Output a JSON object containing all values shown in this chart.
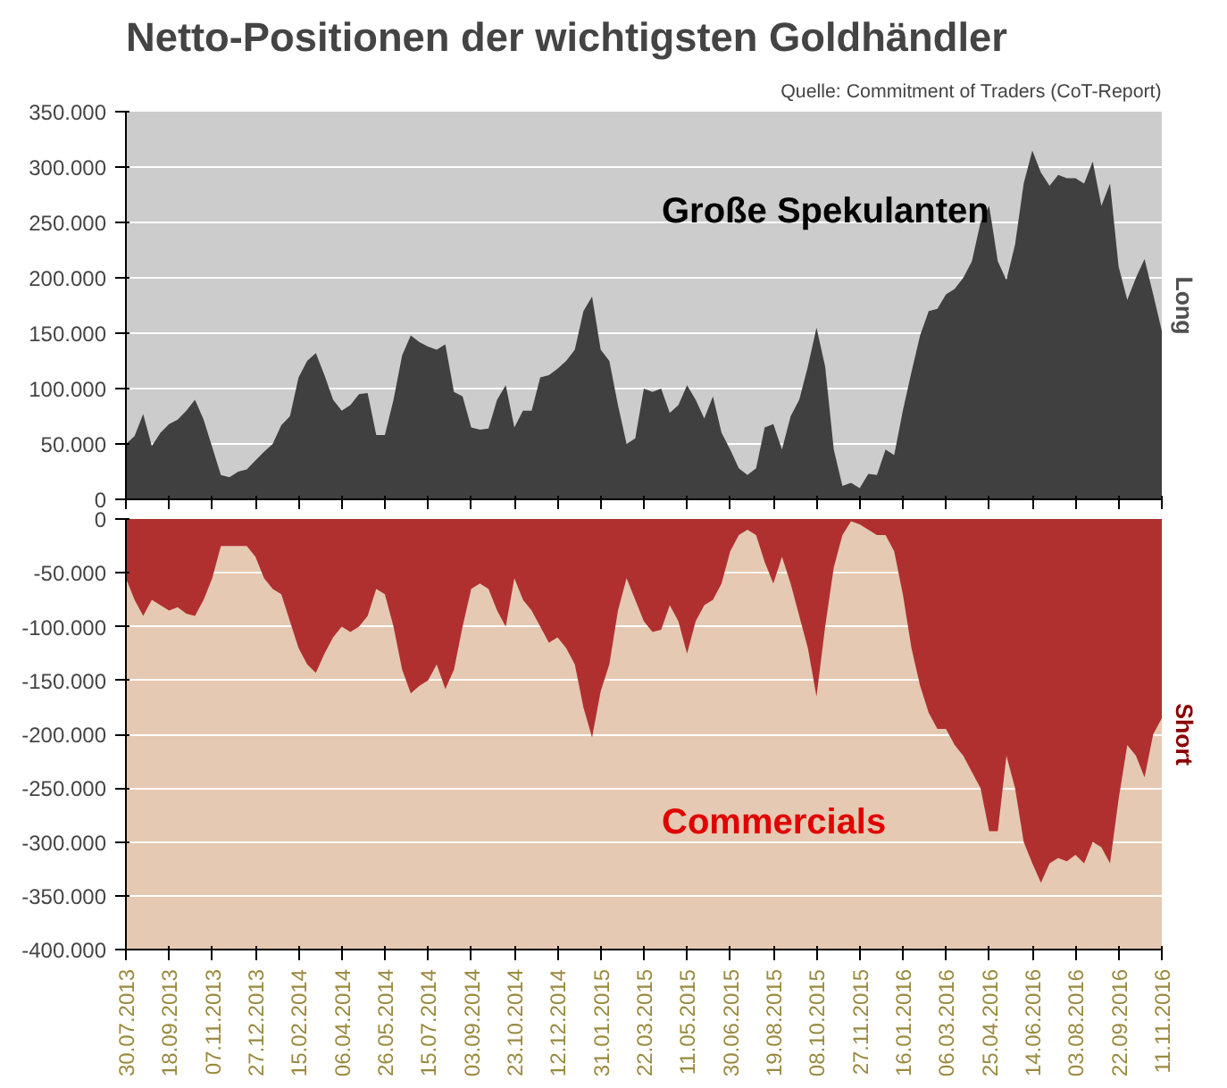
{
  "chart_data": [
    {
      "type": "area",
      "title": "Netto-Positionen der wichtigsten Goldhändler",
      "annotations": [
        "Quelle: Commitment of Traders (CoT-Report)",
        "Große Spekulanten"
      ],
      "ylabel": "Long",
      "grid": "y",
      "tick_labels": "y",
      "x": [
        "2013-07-30",
        "2013-08-09",
        "2013-08-19",
        "2013-08-29",
        "2013-09-08",
        "2013-09-18",
        "2013-09-28",
        "2013-10-08",
        "2013-10-18",
        "2013-10-28",
        "2013-11-07",
        "2013-11-17",
        "2013-11-27",
        "2013-12-07",
        "2013-12-17",
        "2013-12-27",
        "2014-01-06",
        "2014-01-16",
        "2014-01-26",
        "2014-02-05",
        "2014-02-15",
        "2014-02-25",
        "2014-03-07",
        "2014-03-17",
        "2014-03-27",
        "2014-04-06",
        "2014-04-16",
        "2014-04-26",
        "2014-05-06",
        "2014-05-16",
        "2014-05-26",
        "2014-06-05",
        "2014-06-15",
        "2014-06-25",
        "2014-07-05",
        "2014-07-15",
        "2014-07-25",
        "2014-08-04",
        "2014-08-14",
        "2014-08-24",
        "2014-09-03",
        "2014-09-13",
        "2014-09-23",
        "2014-10-03",
        "2014-10-13",
        "2014-10-23",
        "2014-11-02",
        "2014-11-12",
        "2014-11-22",
        "2014-12-02",
        "2014-12-12",
        "2014-12-22",
        "2015-01-01",
        "2015-01-11",
        "2015-01-21",
        "2015-01-31",
        "2015-02-10",
        "2015-02-20",
        "2015-03-02",
        "2015-03-12",
        "2015-03-22",
        "2015-04-01",
        "2015-04-11",
        "2015-04-21",
        "2015-05-01",
        "2015-05-11",
        "2015-05-21",
        "2015-05-31",
        "2015-06-10",
        "2015-06-20",
        "2015-06-30",
        "2015-07-10",
        "2015-07-20",
        "2015-07-30",
        "2015-08-09",
        "2015-08-19",
        "2015-08-29",
        "2015-09-08",
        "2015-09-18",
        "2015-09-28",
        "2015-10-08",
        "2015-10-18",
        "2015-10-28",
        "2015-11-07",
        "2015-11-17",
        "2015-11-27",
        "2015-12-07",
        "2015-12-17",
        "2015-12-27",
        "2016-01-06",
        "2016-01-16",
        "2016-01-26",
        "2016-02-05",
        "2016-02-15",
        "2016-02-25",
        "2016-03-06",
        "2016-03-16",
        "2016-03-26",
        "2016-04-05",
        "2016-04-15",
        "2016-04-25",
        "2016-05-05",
        "2016-05-15",
        "2016-05-25",
        "2016-06-04",
        "2016-06-14",
        "2016-06-24",
        "2016-07-04",
        "2016-07-14",
        "2016-07-24",
        "2016-08-03",
        "2016-08-13",
        "2016-08-23",
        "2016-09-02",
        "2016-09-12",
        "2016-09-22",
        "2016-10-02",
        "2016-10-12",
        "2016-10-22",
        "2016-11-01",
        "2016-11-11"
      ],
      "series": [
        {
          "color": "#404040",
          "values": [
            50000,
            57000,
            77000,
            48000,
            60000,
            68000,
            72000,
            80000,
            90000,
            72000,
            47000,
            22000,
            20000,
            25000,
            27000,
            35000,
            43000,
            50000,
            67000,
            75000,
            110000,
            125000,
            132000,
            112000,
            90000,
            80000,
            85000,
            95000,
            96000,
            58000,
            58000,
            90000,
            130000,
            148000,
            142000,
            138000,
            135000,
            140000,
            97000,
            93000,
            65000,
            63000,
            64000,
            90000,
            103000,
            65000,
            80000,
            80000,
            110000,
            112000,
            118000,
            125000,
            135000,
            170000,
            183000,
            135000,
            125000,
            85000,
            50000,
            55000,
            100000,
            97000,
            100000,
            78000,
            85000,
            103000,
            90000,
            73000,
            93000,
            60000,
            45000,
            28000,
            22000,
            28000,
            65000,
            68000,
            45000,
            75000,
            90000,
            120000,
            155000,
            120000,
            45000,
            12000,
            15000,
            10000,
            23000,
            22000,
            45000,
            40000,
            80000,
            115000,
            148000,
            170000,
            172000,
            185000,
            190000,
            200000,
            215000,
            250000,
            265000,
            215000,
            198000,
            230000,
            285000,
            315000,
            295000,
            283000,
            293000,
            290000,
            290000,
            285000,
            305000,
            265000,
            285000,
            210000,
            180000,
            200000,
            217000,
            185000,
            152000
          ]
        }
      ],
      "xlim": [
        "2013-07-30",
        "2016-11-11"
      ],
      "xticks": [
        {
          "value": "2013-07-30",
          "label": null
        },
        {
          "value": "2013-09-18",
          "label": null
        },
        {
          "value": "2013-11-07",
          "label": null
        },
        {
          "value": "2013-12-27",
          "label": null
        },
        {
          "value": "2014-02-15",
          "label": null
        },
        {
          "value": "2014-04-06",
          "label": null
        },
        {
          "value": "2014-05-26",
          "label": null
        },
        {
          "value": "2014-07-15",
          "label": null
        },
        {
          "value": "2014-09-03",
          "label": null
        },
        {
          "value": "2014-10-23",
          "label": null
        },
        {
          "value": "2014-12-12",
          "label": null
        },
        {
          "value": "2015-01-31",
          "label": null
        },
        {
          "value": "2015-03-22",
          "label": null
        },
        {
          "value": "2015-05-11",
          "label": null
        },
        {
          "value": "2015-06-30",
          "label": null
        },
        {
          "value": "2015-08-19",
          "label": null
        },
        {
          "value": "2015-10-08",
          "label": null
        },
        {
          "value": "2015-11-27",
          "label": null
        },
        {
          "value": "2016-01-16",
          "label": null
        },
        {
          "value": "2016-03-06",
          "label": null
        },
        {
          "value": "2016-04-25",
          "label": null
        },
        {
          "value": "2016-06-14",
          "label": null
        },
        {
          "value": "2016-08-03",
          "label": null
        },
        {
          "value": "2016-09-22",
          "label": null
        },
        {
          "value": "2016-11-11",
          "label": null
        }
      ],
      "ylim": [
        0,
        350000
      ],
      "yticks": [
        {
          "value": 0,
          "label": "0"
        },
        {
          "value": 50000,
          "label": "50.000"
        },
        {
          "value": 100000,
          "label": "100.000"
        },
        {
          "value": 150000,
          "label": "150.000"
        },
        {
          "value": 200000,
          "label": "200.000"
        },
        {
          "value": 250000,
          "label": "250.000"
        },
        {
          "value": 300000,
          "label": "300.000"
        },
        {
          "value": 350000,
          "label": "350.000"
        }
      ]
    },
    {
      "type": "area",
      "annotations": [
        "Commercials"
      ],
      "ylabel": "Short",
      "grid": "y",
      "x": [
        "2013-07-30",
        "2013-08-09",
        "2013-08-19",
        "2013-08-29",
        "2013-09-08",
        "2013-09-18",
        "2013-09-28",
        "2013-10-08",
        "2013-10-18",
        "2013-10-28",
        "2013-11-07",
        "2013-11-17",
        "2013-11-27",
        "2013-12-07",
        "2013-12-17",
        "2013-12-27",
        "2014-01-06",
        "2014-01-16",
        "2014-01-26",
        "2014-02-05",
        "2014-02-15",
        "2014-02-25",
        "2014-03-07",
        "2014-03-17",
        "2014-03-27",
        "2014-04-06",
        "2014-04-16",
        "2014-04-26",
        "2014-05-06",
        "2014-05-16",
        "2014-05-26",
        "2014-06-05",
        "2014-06-15",
        "2014-06-25",
        "2014-07-05",
        "2014-07-15",
        "2014-07-25",
        "2014-08-04",
        "2014-08-14",
        "2014-08-24",
        "2014-09-03",
        "2014-09-13",
        "2014-09-23",
        "2014-10-03",
        "2014-10-13",
        "2014-10-23",
        "2014-11-02",
        "2014-11-12",
        "2014-11-22",
        "2014-12-02",
        "2014-12-12",
        "2014-12-22",
        "2015-01-01",
        "2015-01-11",
        "2015-01-21",
        "2015-01-31",
        "2015-02-10",
        "2015-02-20",
        "2015-03-02",
        "2015-03-12",
        "2015-03-22",
        "2015-04-01",
        "2015-04-11",
        "2015-04-21",
        "2015-05-01",
        "2015-05-11",
        "2015-05-21",
        "2015-05-31",
        "2015-06-10",
        "2015-06-20",
        "2015-06-30",
        "2015-07-10",
        "2015-07-20",
        "2015-07-30",
        "2015-08-09",
        "2015-08-19",
        "2015-08-29",
        "2015-09-08",
        "2015-09-18",
        "2015-09-28",
        "2015-10-08",
        "2015-10-18",
        "2015-10-28",
        "2015-11-07",
        "2015-11-17",
        "2015-11-27",
        "2015-12-07",
        "2015-12-17",
        "2015-12-27",
        "2016-01-06",
        "2016-01-16",
        "2016-01-26",
        "2016-02-05",
        "2016-02-15",
        "2016-02-25",
        "2016-03-06",
        "2016-03-16",
        "2016-03-26",
        "2016-04-05",
        "2016-04-15",
        "2016-04-25",
        "2016-05-05",
        "2016-05-15",
        "2016-05-25",
        "2016-06-04",
        "2016-06-14",
        "2016-06-24",
        "2016-07-04",
        "2016-07-14",
        "2016-07-24",
        "2016-08-03",
        "2016-08-13",
        "2016-08-23",
        "2016-09-02",
        "2016-09-12",
        "2016-09-22",
        "2016-10-02",
        "2016-10-12",
        "2016-10-22",
        "2016-11-01",
        "2016-11-11"
      ],
      "series": [
        {
          "color": "#b03030",
          "values": [
            -55000,
            -75000,
            -90000,
            -75000,
            -80000,
            -85000,
            -82000,
            -88000,
            -90000,
            -75000,
            -55000,
            -25000,
            -25000,
            -25000,
            -25000,
            -35000,
            -55000,
            -65000,
            -70000,
            -95000,
            -120000,
            -135000,
            -143000,
            -125000,
            -110000,
            -100000,
            -105000,
            -100000,
            -90000,
            -65000,
            -70000,
            -100000,
            -140000,
            -162000,
            -155000,
            -150000,
            -135000,
            -158000,
            -140000,
            -100000,
            -65000,
            -60000,
            -65000,
            -85000,
            -100000,
            -55000,
            -75000,
            -85000,
            -100000,
            -115000,
            -110000,
            -120000,
            -135000,
            -175000,
            -203000,
            -160000,
            -135000,
            -85000,
            -55000,
            -75000,
            -95000,
            -105000,
            -103000,
            -80000,
            -95000,
            -125000,
            -95000,
            -80000,
            -75000,
            -60000,
            -30000,
            -15000,
            -10000,
            -15000,
            -40000,
            -60000,
            -35000,
            -60000,
            -90000,
            -120000,
            -165000,
            -100000,
            -45000,
            -15000,
            -2000,
            -5000,
            -10000,
            -15000,
            -15000,
            -30000,
            -70000,
            -120000,
            -155000,
            -180000,
            -195000,
            -195000,
            -210000,
            -220000,
            -235000,
            -250000,
            -290000,
            -290000,
            -220000,
            -250000,
            -300000,
            -320000,
            -338000,
            -320000,
            -315000,
            -318000,
            -312000,
            -320000,
            -300000,
            -305000,
            -320000,
            -260000,
            -210000,
            -220000,
            -240000,
            -200000,
            -185000
          ]
        }
      ],
      "xlim": [
        "2013-07-30",
        "2016-11-11"
      ],
      "xticks": [
        {
          "value": "2013-07-30",
          "label": "30.07.2013"
        },
        {
          "value": "2013-09-18",
          "label": "18.09.2013"
        },
        {
          "value": "2013-11-07",
          "label": "07.11.2013"
        },
        {
          "value": "2013-12-27",
          "label": "27.12.2013"
        },
        {
          "value": "2014-02-15",
          "label": "15.02.2014"
        },
        {
          "value": "2014-04-06",
          "label": "06.04.2014"
        },
        {
          "value": "2014-05-26",
          "label": "26.05.2014"
        },
        {
          "value": "2014-07-15",
          "label": "15.07.2014"
        },
        {
          "value": "2014-09-03",
          "label": "03.09.2014"
        },
        {
          "value": "2014-10-23",
          "label": "23.10.2014"
        },
        {
          "value": "2014-12-12",
          "label": "12.12.2014"
        },
        {
          "value": "2015-01-31",
          "label": "31.01.2015"
        },
        {
          "value": "2015-03-22",
          "label": "22.03.2015"
        },
        {
          "value": "2015-05-11",
          "label": "11.05.2015"
        },
        {
          "value": "2015-06-30",
          "label": "30.06.2015"
        },
        {
          "value": "2015-08-19",
          "label": "19.08.2015"
        },
        {
          "value": "2015-10-08",
          "label": "08.10.2015"
        },
        {
          "value": "2015-11-27",
          "label": "27.11.2015"
        },
        {
          "value": "2016-01-16",
          "label": "16.01.2016"
        },
        {
          "value": "2016-03-06",
          "label": "06.03.2016"
        },
        {
          "value": "2016-04-25",
          "label": "25.04.2016"
        },
        {
          "value": "2016-06-14",
          "label": "14.06.2016"
        },
        {
          "value": "2016-08-03",
          "label": "03.08.2016"
        },
        {
          "value": "2016-09-22",
          "label": "22.09.2016"
        },
        {
          "value": "2016-11-11",
          "label": "11.11.2016"
        }
      ],
      "ylim": [
        -400000,
        0
      ],
      "yticks": [
        {
          "value": -400000,
          "label": "-400.000"
        },
        {
          "value": -350000,
          "label": "-350.000"
        },
        {
          "value": -300000,
          "label": "-300.000"
        },
        {
          "value": -250000,
          "label": "-250.000"
        },
        {
          "value": -200000,
          "label": "-200.000"
        },
        {
          "value": -150000,
          "label": "-150.000"
        },
        {
          "value": -100000,
          "label": "-100.000"
        },
        {
          "value": -50000,
          "label": "-50.000"
        },
        {
          "value": 0,
          "label": "0"
        }
      ]
    }
  ]
}
